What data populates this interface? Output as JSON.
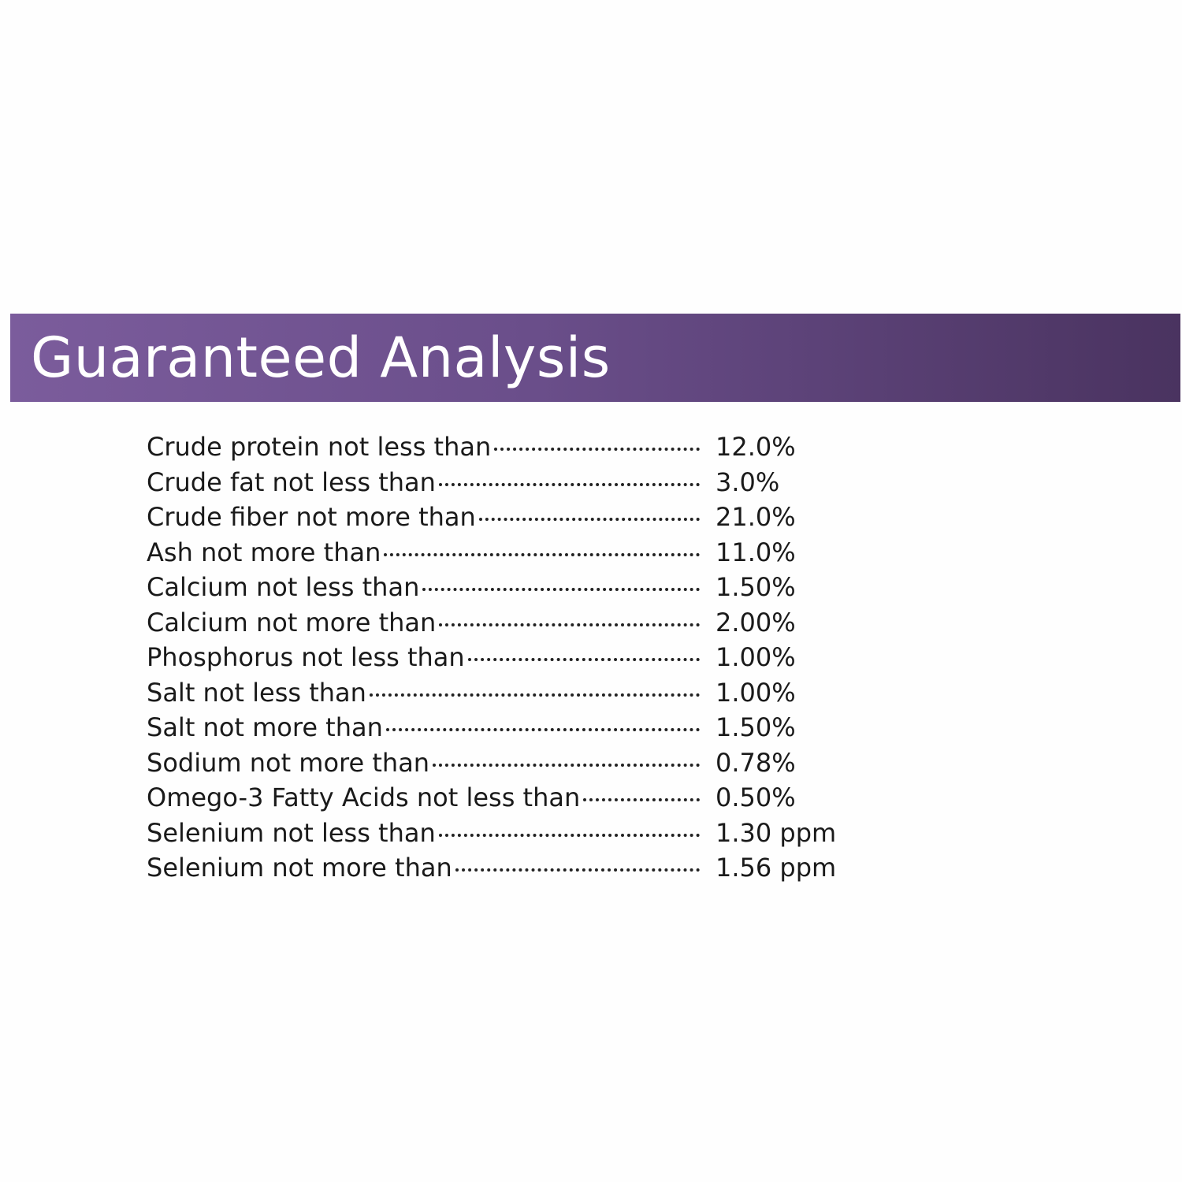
{
  "header": {
    "title": "Guaranteed Analysis"
  },
  "table": {
    "rows": [
      [
        "Crude protein not less than",
        "12.0%"
      ],
      [
        "Crude fat not less than",
        "3.0%"
      ],
      [
        "Crude fiber not more than",
        "21.0%"
      ],
      [
        "Ash not more than",
        "11.0%"
      ],
      [
        "Calcium not less than",
        "1.50%"
      ],
      [
        "Calcium not more than",
        "2.00%"
      ],
      [
        "Phosphorus not less than",
        "1.00%"
      ],
      [
        "Salt not less than",
        "1.00%"
      ],
      [
        "Salt not more than",
        "1.50%"
      ],
      [
        "Sodium not more than",
        "0.78%"
      ],
      [
        "Omego-3 Fatty Acids not less than",
        "0.50%"
      ],
      [
        "Selenium not less than",
        "1.30 ppm"
      ],
      [
        "Selenium not more than",
        "1.56 ppm"
      ]
    ]
  }
}
